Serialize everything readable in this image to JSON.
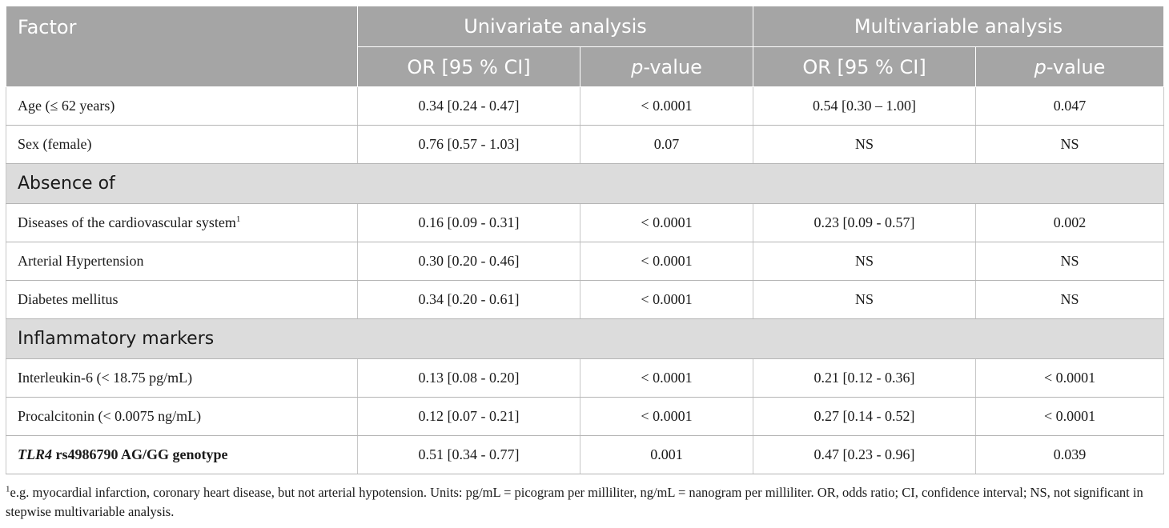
{
  "table": {
    "header": {
      "factor": "Factor",
      "group1": "Univariate analysis",
      "group2": "Multivariable analysis",
      "or_label": "OR [95 % CI]",
      "p_italic": "p",
      "p_rest": "-value"
    },
    "rows": [
      {
        "factor": "Age (≤ 62 years)",
        "uni_or": "0.34 [0.24 - 0.47]",
        "uni_p": "< 0.0001",
        "multi_or": "0.54 [0.30 – 1.00]",
        "multi_p": "0.047"
      },
      {
        "factor": "Sex (female)",
        "uni_or": "0.76 [0.57 - 1.03]",
        "uni_p": "0.07",
        "multi_or": "NS",
        "multi_p": "NS"
      }
    ],
    "section1": "Absence of",
    "rows2": [
      {
        "factor": "Diseases of the cardiovascular system",
        "sup": "1",
        "uni_or": "0.16 [0.09 - 0.31]",
        "uni_p": "< 0.0001",
        "multi_or": "0.23 [0.09 - 0.57]",
        "multi_p": "0.002"
      },
      {
        "factor": "Arterial Hypertension",
        "uni_or": "0.30 [0.20 - 0.46]",
        "uni_p": "< 0.0001",
        "multi_or": "NS",
        "multi_p": "NS"
      },
      {
        "factor": "Diabetes mellitus",
        "uni_or": "0.34 [0.20 - 0.61]",
        "uni_p": "< 0.0001",
        "multi_or": "NS",
        "multi_p": "NS"
      }
    ],
    "section2": "Inflammatory markers",
    "rows3": [
      {
        "factor": "Interleukin-6 (< 18.75 pg/mL)",
        "uni_or": "0.13 [0.08 - 0.20]",
        "uni_p": "< 0.0001",
        "multi_or": "0.21 [0.12 - 0.36]",
        "multi_p": "< 0.0001"
      },
      {
        "factor": "Procalcitonin (< 0.0075 ng/mL)",
        "uni_or": "0.12 [0.07 - 0.21]",
        "uni_p": "< 0.0001",
        "multi_or": "0.27 [0.14 - 0.52]",
        "multi_p": "< 0.0001"
      },
      {
        "factor_gene": "TLR4",
        "factor_rest": " rs4986790 AG/GG genotype",
        "uni_or": "0.51 [0.34 - 0.77]",
        "uni_p": "0.001",
        "multi_or": "0.47 [0.23 - 0.96]",
        "multi_p": "0.039"
      }
    ]
  },
  "footnote": {
    "marker": "1",
    "text": "e.g. myocardial infarction, coronary heart disease, but not arterial hypotension. Units: pg/mL = picogram per milliliter, ng/mL = nanogram per milliliter. OR, odds ratio; CI, confidence interval; NS, not significant in stepwise multivariable analysis."
  },
  "colors": {
    "header_bg": "#a5a5a5",
    "section_bg": "#dcdcdc"
  }
}
